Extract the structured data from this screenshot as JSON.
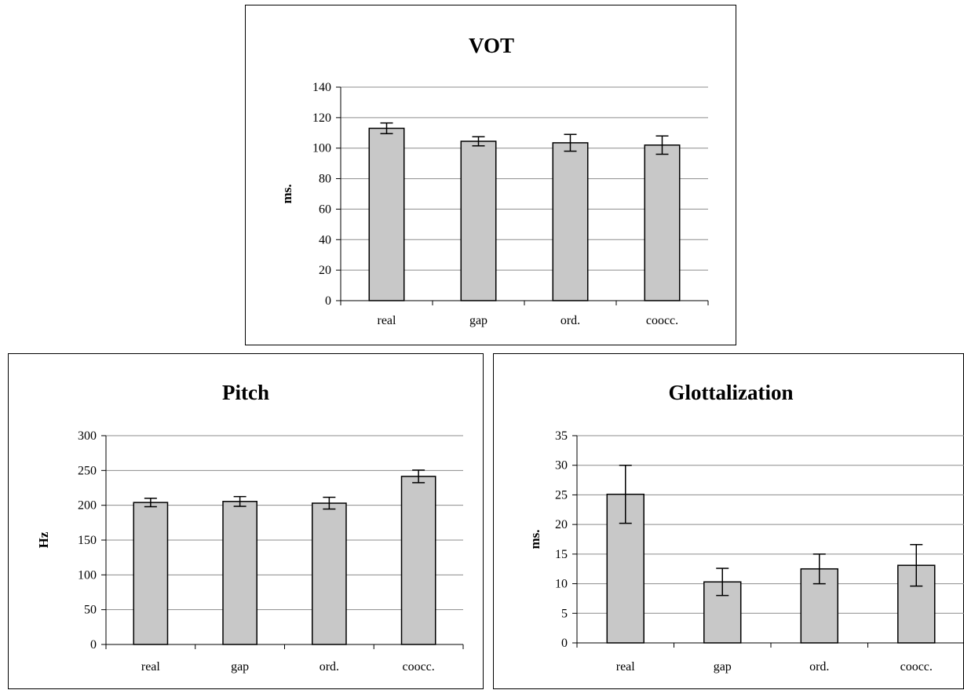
{
  "chart_data": [
    {
      "id": "vot",
      "type": "bar",
      "title": "VOT",
      "ylabel": "ms.",
      "categories": [
        "real",
        "gap",
        "ord.",
        "coocc."
      ],
      "values": [
        113,
        104.5,
        103.5,
        102
      ],
      "error": [
        3.5,
        3,
        5.5,
        6
      ],
      "ylim": [
        0,
        140
      ],
      "ytick_step": 20,
      "yticks": [
        "0",
        "20",
        "40",
        "60",
        "80",
        "100",
        "120",
        "140"
      ],
      "grid": true,
      "bar_color": "#c8c8c8"
    },
    {
      "id": "pitch",
      "type": "bar",
      "title": "Pitch",
      "ylabel": "Hz",
      "categories": [
        "real",
        "gap",
        "ord.",
        "coocc."
      ],
      "values": [
        204,
        205.5,
        203,
        241.5
      ],
      "error": [
        6,
        7,
        8.5,
        9
      ],
      "ylim": [
        0,
        300
      ],
      "ytick_step": 50,
      "yticks": [
        "0",
        "50",
        "100",
        "150",
        "200",
        "250",
        "300"
      ],
      "grid": true,
      "bar_color": "#c8c8c8"
    },
    {
      "id": "glott",
      "type": "bar",
      "title": "Glottalization",
      "ylabel": "ms.",
      "categories": [
        "real",
        "gap",
        "ord.",
        "coocc."
      ],
      "values": [
        25.1,
        10.3,
        12.5,
        13.1
      ],
      "error": [
        4.9,
        2.3,
        2.5,
        3.5
      ],
      "ylim": [
        0,
        35
      ],
      "ytick_step": 5,
      "yticks": [
        "0",
        "5",
        "10",
        "15",
        "20",
        "25",
        "30",
        "35"
      ],
      "grid": true,
      "bar_color": "#c8c8c8"
    }
  ]
}
